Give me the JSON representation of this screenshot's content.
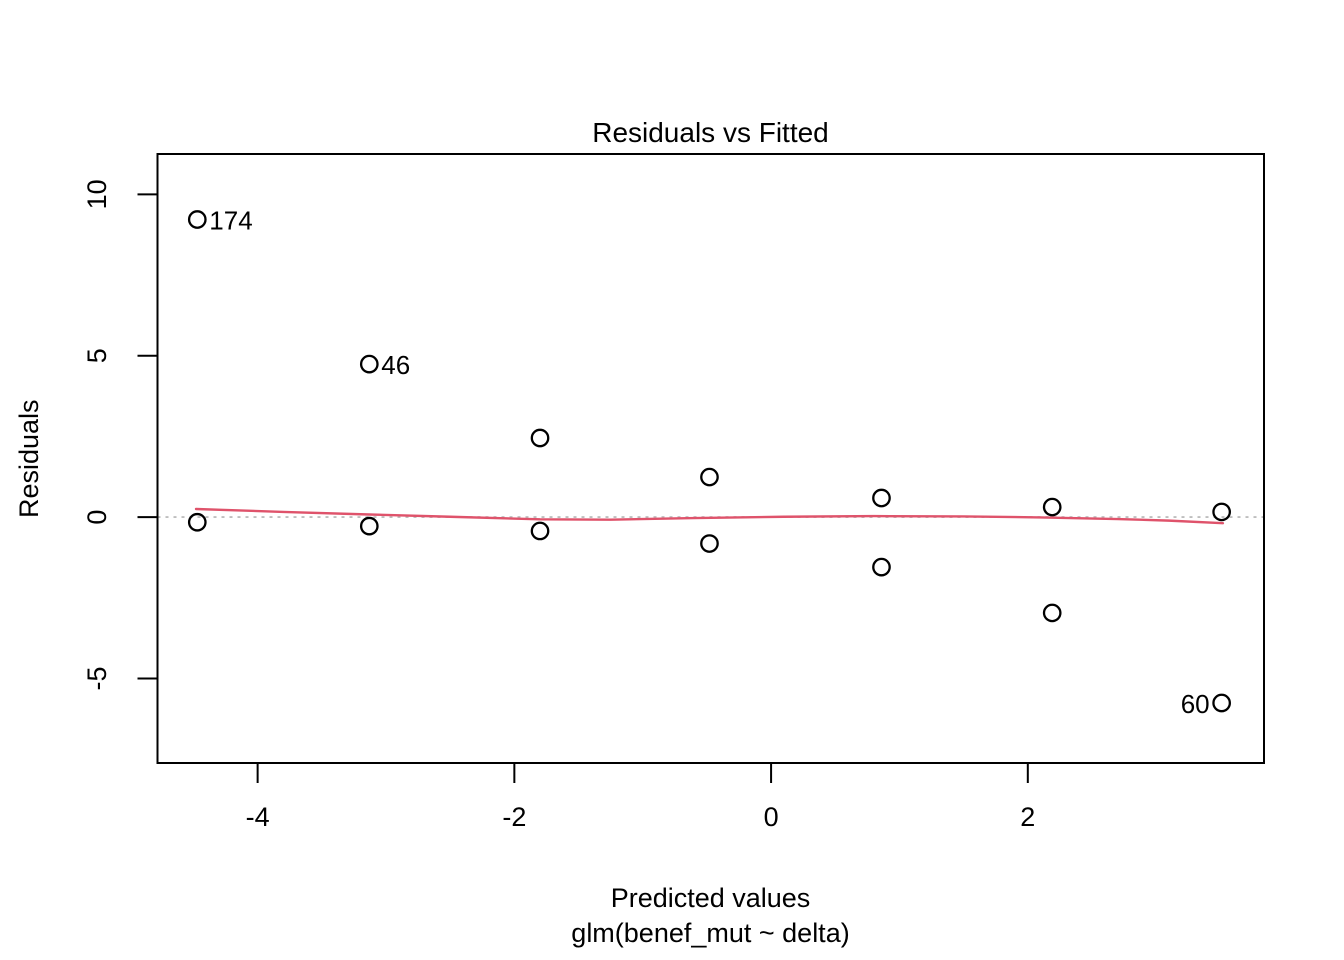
{
  "chart_data": {
    "type": "scatter",
    "title": "Residuals vs Fitted",
    "xlabel": "Predicted values",
    "xlabel_sub": "glm(benef_mut ~ delta)",
    "ylabel": "Residuals",
    "xlim": [
      -4.78,
      3.84
    ],
    "ylim": [
      -7.62,
      11.25
    ],
    "x_ticks": [
      -4,
      -2,
      0,
      2
    ],
    "y_ticks": [
      10,
      5,
      0,
      -5
    ],
    "grid": false,
    "legend": "none",
    "point_style": "open-circle",
    "point_color": "#000000",
    "points": [
      {
        "x": -4.47,
        "y": 9.22,
        "label": "174",
        "label_side": "right"
      },
      {
        "x": -3.13,
        "y": 4.74,
        "label": "46",
        "label_side": "right"
      },
      {
        "x": -1.8,
        "y": 2.45
      },
      {
        "x": -0.48,
        "y": 1.24
      },
      {
        "x": 0.86,
        "y": 0.59
      },
      {
        "x": 2.19,
        "y": 0.31
      },
      {
        "x": 3.51,
        "y": 0.16
      },
      {
        "x": -4.47,
        "y": -0.16
      },
      {
        "x": -3.13,
        "y": -0.28
      },
      {
        "x": -1.8,
        "y": -0.43
      },
      {
        "x": -0.48,
        "y": -0.82
      },
      {
        "x": 0.86,
        "y": -1.55
      },
      {
        "x": 2.19,
        "y": -2.97
      },
      {
        "x": 3.51,
        "y": -5.76,
        "label": "60",
        "label_side": "left"
      }
    ],
    "smoother": {
      "name": "lowess-smooth-line",
      "color": "#DF536B",
      "points": [
        [
          -4.48,
          0.25
        ],
        [
          -3.8,
          0.16
        ],
        [
          -3.13,
          0.08
        ],
        [
          -2.5,
          0.01
        ],
        [
          -1.8,
          -0.07
        ],
        [
          -1.25,
          -0.08
        ],
        [
          -0.6,
          -0.03
        ],
        [
          0.1,
          0.01
        ],
        [
          0.8,
          0.03
        ],
        [
          1.5,
          0.02
        ],
        [
          2.1,
          -0.01
        ],
        [
          2.7,
          -0.06
        ],
        [
          3.1,
          -0.11
        ],
        [
          3.52,
          -0.19
        ]
      ]
    },
    "reference_line": {
      "y": 0,
      "color": "#BEBEBE",
      "style": "dotted"
    },
    "axis_color": "#000000"
  }
}
